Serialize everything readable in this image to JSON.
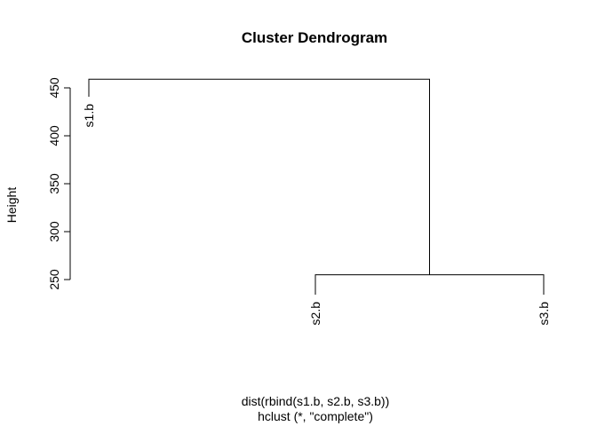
{
  "chart_data": {
    "type": "dendrogram",
    "title": "Cluster Dendrogram",
    "ylabel": "Height",
    "xlabel_lines": [
      "dist(rbind(s1.b, s2.b, s3.b))",
      "hclust (*, \"complete\")"
    ],
    "ylim": [
      250,
      460
    ],
    "y_ticks": [
      250,
      300,
      350,
      400,
      450
    ],
    "leaves": [
      "s1.b",
      "s2.b",
      "s3.b"
    ],
    "merges": [
      {
        "left": "s2.b",
        "right": "s3.b",
        "height": 255
      },
      {
        "left": "s1.b",
        "right": "(s2.b, s3.b)",
        "height": 459
      }
    ]
  }
}
